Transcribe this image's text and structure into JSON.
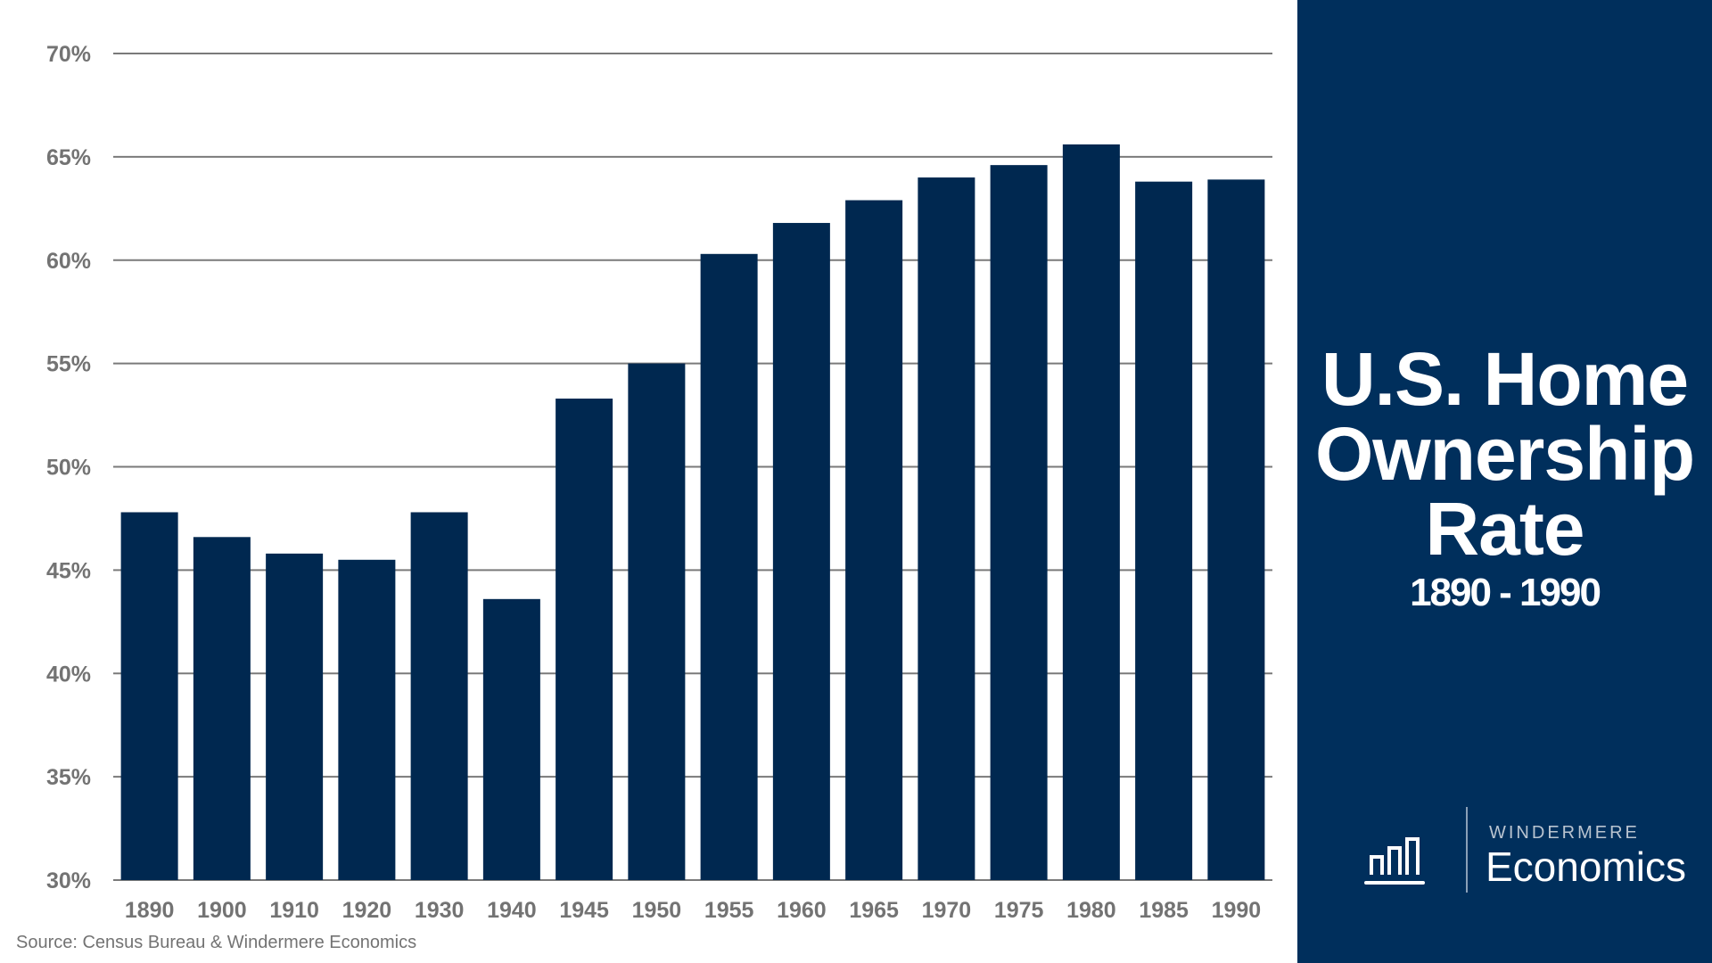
{
  "chart_data": {
    "type": "bar",
    "title": "U.S. Home Ownership Rate",
    "subtitle": "1890 - 1990",
    "categories": [
      "1890",
      "1900",
      "1910",
      "1920",
      "1930",
      "1940",
      "1945",
      "1950",
      "1955",
      "1960",
      "1965",
      "1970",
      "1975",
      "1980",
      "1985",
      "1990"
    ],
    "values": [
      47.8,
      46.6,
      45.8,
      45.5,
      47.8,
      43.6,
      53.3,
      55.0,
      60.3,
      61.8,
      62.9,
      64.0,
      64.6,
      65.6,
      63.8,
      63.9
    ],
    "ylim": [
      30,
      70
    ],
    "yticks": [
      "30%",
      "35%",
      "40%",
      "45%",
      "50%",
      "55%",
      "60%",
      "65%",
      "70%"
    ],
    "ytick_values": [
      30,
      35,
      40,
      45,
      50,
      55,
      60,
      65,
      70
    ],
    "grid": true,
    "bar_color": "#002850",
    "grid_color": "#7a7a7a",
    "xlabel": "",
    "ylabel": ""
  },
  "source": "Source: Census Bureau & Windermere Economics",
  "panel": {
    "title_lines": [
      "U.S. Home",
      "Ownership",
      "Rate"
    ],
    "subtitle": "1890 - 1990",
    "background": "#002f5c"
  },
  "logo": {
    "top": "WINDERMERE",
    "bottom": "Economics",
    "icon": "bar-chart-icon"
  }
}
